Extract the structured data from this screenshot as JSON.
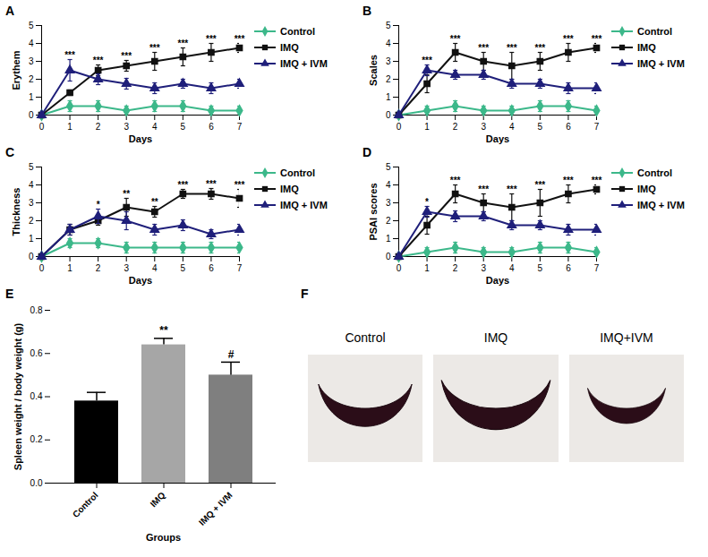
{
  "chart_data": [
    {
      "panel": "A",
      "type": "line",
      "y_label": "Erythem",
      "x_label": "Days",
      "x": [
        0,
        1,
        2,
        3,
        4,
        5,
        6,
        7
      ],
      "xlim": [
        0,
        7
      ],
      "xticks": [
        0,
        1,
        2,
        3,
        4,
        5,
        6,
        7
      ],
      "ylim": [
        0,
        5
      ],
      "yticks": [
        0,
        1,
        2,
        3,
        4,
        5
      ],
      "legend": "right",
      "series": [
        {
          "name": "Control",
          "color": "#3cb88a",
          "marker": "diamond",
          "values": [
            0,
            0.5,
            0.5,
            0.25,
            0.5,
            0.5,
            0.25,
            0.25
          ],
          "errors": [
            0,
            0.3,
            0.3,
            0.25,
            0.3,
            0.3,
            0.25,
            0.25
          ]
        },
        {
          "name": "IMQ",
          "color": "#111111",
          "marker": "square",
          "values": [
            0,
            1.25,
            2.5,
            2.75,
            3.0,
            3.25,
            3.5,
            3.75
          ],
          "errors": [
            0,
            0.15,
            0.3,
            0.3,
            0.5,
            0.5,
            0.5,
            0.25
          ]
        },
        {
          "name": "IMQ + IVM",
          "color": "#1f1f7a",
          "marker": "triangle",
          "values": [
            0,
            2.5,
            2.0,
            1.75,
            1.5,
            1.75,
            1.5,
            1.75
          ],
          "errors": [
            0,
            0.6,
            0.3,
            0.3,
            0.3,
            0.25,
            0.3,
            0.25
          ]
        }
      ],
      "significance": [
        {
          "x": 1,
          "text": "***"
        },
        {
          "x": 2,
          "text": "***"
        },
        {
          "x": 3,
          "text": "***"
        },
        {
          "x": 4,
          "text": "***"
        },
        {
          "x": 5,
          "text": "***"
        },
        {
          "x": 6,
          "text": "***"
        },
        {
          "x": 7,
          "text": "***"
        }
      ]
    },
    {
      "panel": "B",
      "type": "line",
      "y_label": "Scales",
      "x_label": "Days",
      "x": [
        0,
        1,
        2,
        3,
        4,
        5,
        6,
        7
      ],
      "xlim": [
        0,
        7
      ],
      "xticks": [
        0,
        1,
        2,
        3,
        4,
        5,
        6,
        7
      ],
      "ylim": [
        0,
        5
      ],
      "yticks": [
        0,
        1,
        2,
        3,
        4,
        5
      ],
      "legend": "right",
      "series": [
        {
          "name": "Control",
          "color": "#3cb88a",
          "marker": "diamond",
          "values": [
            0,
            0.25,
            0.5,
            0.25,
            0.25,
            0.5,
            0.5,
            0.25
          ],
          "errors": [
            0,
            0.25,
            0.3,
            0.25,
            0.25,
            0.3,
            0.3,
            0.25
          ]
        },
        {
          "name": "IMQ",
          "color": "#111111",
          "marker": "square",
          "values": [
            0,
            1.75,
            3.5,
            3.0,
            2.75,
            3.0,
            3.5,
            3.75
          ],
          "errors": [
            0,
            0.5,
            0.5,
            0.5,
            0.75,
            0.5,
            0.5,
            0.25
          ]
        },
        {
          "name": "IMQ + IVM",
          "color": "#1f1f7a",
          "marker": "triangle",
          "values": [
            0,
            2.5,
            2.25,
            2.25,
            1.75,
            1.75,
            1.5,
            1.5
          ],
          "errors": [
            0,
            0.3,
            0.25,
            0.25,
            0.25,
            0.25,
            0.3,
            0.3
          ]
        }
      ],
      "significance": [
        {
          "x": 1,
          "text": "***"
        },
        {
          "x": 2,
          "text": "***"
        },
        {
          "x": 3,
          "text": "***"
        },
        {
          "x": 4,
          "text": "***"
        },
        {
          "x": 5,
          "text": "***"
        },
        {
          "x": 6,
          "text": "***"
        },
        {
          "x": 7,
          "text": "***"
        }
      ]
    },
    {
      "panel": "C",
      "type": "line",
      "y_label": "Thickness",
      "x_label": "Days",
      "x": [
        0,
        1,
        2,
        3,
        4,
        5,
        6,
        7
      ],
      "xlim": [
        0,
        7
      ],
      "xticks": [
        0,
        1,
        2,
        3,
        4,
        5,
        6,
        7
      ],
      "ylim": [
        0,
        5
      ],
      "yticks": [
        0,
        1,
        2,
        3,
        4,
        5
      ],
      "legend": "right",
      "series": [
        {
          "name": "Control",
          "color": "#3cb88a",
          "marker": "diamond",
          "values": [
            0,
            0.75,
            0.75,
            0.5,
            0.5,
            0.5,
            0.5,
            0.5
          ],
          "errors": [
            0,
            0.25,
            0.25,
            0.3,
            0.3,
            0.3,
            0.3,
            0.3
          ]
        },
        {
          "name": "IMQ",
          "color": "#111111",
          "marker": "square",
          "values": [
            0,
            1.5,
            2.0,
            2.75,
            2.5,
            3.5,
            3.5,
            3.25
          ],
          "errors": [
            0,
            0.3,
            0.25,
            0.5,
            0.3,
            0.25,
            0.3,
            0.5
          ]
        },
        {
          "name": "IMQ + IVM",
          "color": "#1f1f7a",
          "marker": "triangle",
          "values": [
            0,
            1.5,
            2.25,
            2.0,
            1.5,
            1.75,
            1.25,
            1.5
          ],
          "errors": [
            0,
            0.3,
            0.4,
            0.5,
            0.3,
            0.3,
            0.25,
            0.3
          ]
        }
      ],
      "significance": [
        {
          "x": 2,
          "text": "*"
        },
        {
          "x": 3,
          "text": "**"
        },
        {
          "x": 4,
          "text": "**"
        },
        {
          "x": 5,
          "text": "***"
        },
        {
          "x": 6,
          "text": "***"
        },
        {
          "x": 7,
          "text": "***"
        }
      ]
    },
    {
      "panel": "D",
      "type": "line",
      "y_label": "PSAI scores",
      "x_label": "Days",
      "x": [
        0,
        1,
        2,
        3,
        4,
        5,
        6,
        7
      ],
      "xlim": [
        0,
        7
      ],
      "xticks": [
        0,
        1,
        2,
        3,
        4,
        5,
        6,
        7
      ],
      "ylim": [
        0,
        5
      ],
      "yticks": [
        0,
        1,
        2,
        3,
        4,
        5
      ],
      "legend": "right",
      "series": [
        {
          "name": "Control",
          "color": "#3cb88a",
          "marker": "diamond",
          "values": [
            0,
            0.25,
            0.5,
            0.25,
            0.25,
            0.5,
            0.5,
            0.25
          ],
          "errors": [
            0,
            0.25,
            0.3,
            0.25,
            0.25,
            0.3,
            0.3,
            0.25
          ]
        },
        {
          "name": "IMQ",
          "color": "#111111",
          "marker": "square",
          "values": [
            0,
            1.75,
            3.5,
            3.0,
            2.75,
            3.0,
            3.5,
            3.75
          ],
          "errors": [
            0,
            0.5,
            0.5,
            0.5,
            0.75,
            0.75,
            0.5,
            0.25
          ]
        },
        {
          "name": "IMQ + IVM",
          "color": "#1f1f7a",
          "marker": "triangle",
          "values": [
            0,
            2.5,
            2.25,
            2.25,
            1.75,
            1.75,
            1.5,
            1.5
          ],
          "errors": [
            0,
            0.3,
            0.3,
            0.25,
            0.25,
            0.25,
            0.3,
            0.3
          ]
        }
      ],
      "significance": [
        {
          "x": 1,
          "text": "*"
        },
        {
          "x": 2,
          "text": "***"
        },
        {
          "x": 3,
          "text": "***"
        },
        {
          "x": 4,
          "text": "***"
        },
        {
          "x": 5,
          "text": "***"
        },
        {
          "x": 6,
          "text": "***"
        },
        {
          "x": 7,
          "text": "***"
        }
      ]
    },
    {
      "panel": "E",
      "type": "bar",
      "y_label": "Spleen weight / body weight (g)",
      "x_label": "Groups",
      "categories": [
        "Control",
        "IMQ",
        "IMQ + IVM"
      ],
      "values": [
        0.38,
        0.64,
        0.5
      ],
      "errors": [
        0.04,
        0.03,
        0.06
      ],
      "colors": [
        "#000000",
        "#a6a6a6",
        "#7f7f7f"
      ],
      "ylim": [
        0,
        0.8
      ],
      "yticks": [
        {
          "value": 0,
          "label": "0.0"
        },
        {
          "value": 0.2,
          "label": "0.2"
        },
        {
          "value": 0.4,
          "label": "0.4"
        },
        {
          "value": 0.6,
          "label": "0.6"
        },
        {
          "value": 0.8,
          "label": "0.8"
        }
      ],
      "annotations": [
        {
          "category": "IMQ",
          "text": "**"
        },
        {
          "category": "IMQ + IVM",
          "text": "#"
        }
      ]
    }
  ],
  "photo": {
    "panel": "F",
    "labels": [
      "Control",
      "IMQ",
      "IMQ+IVM"
    ]
  }
}
